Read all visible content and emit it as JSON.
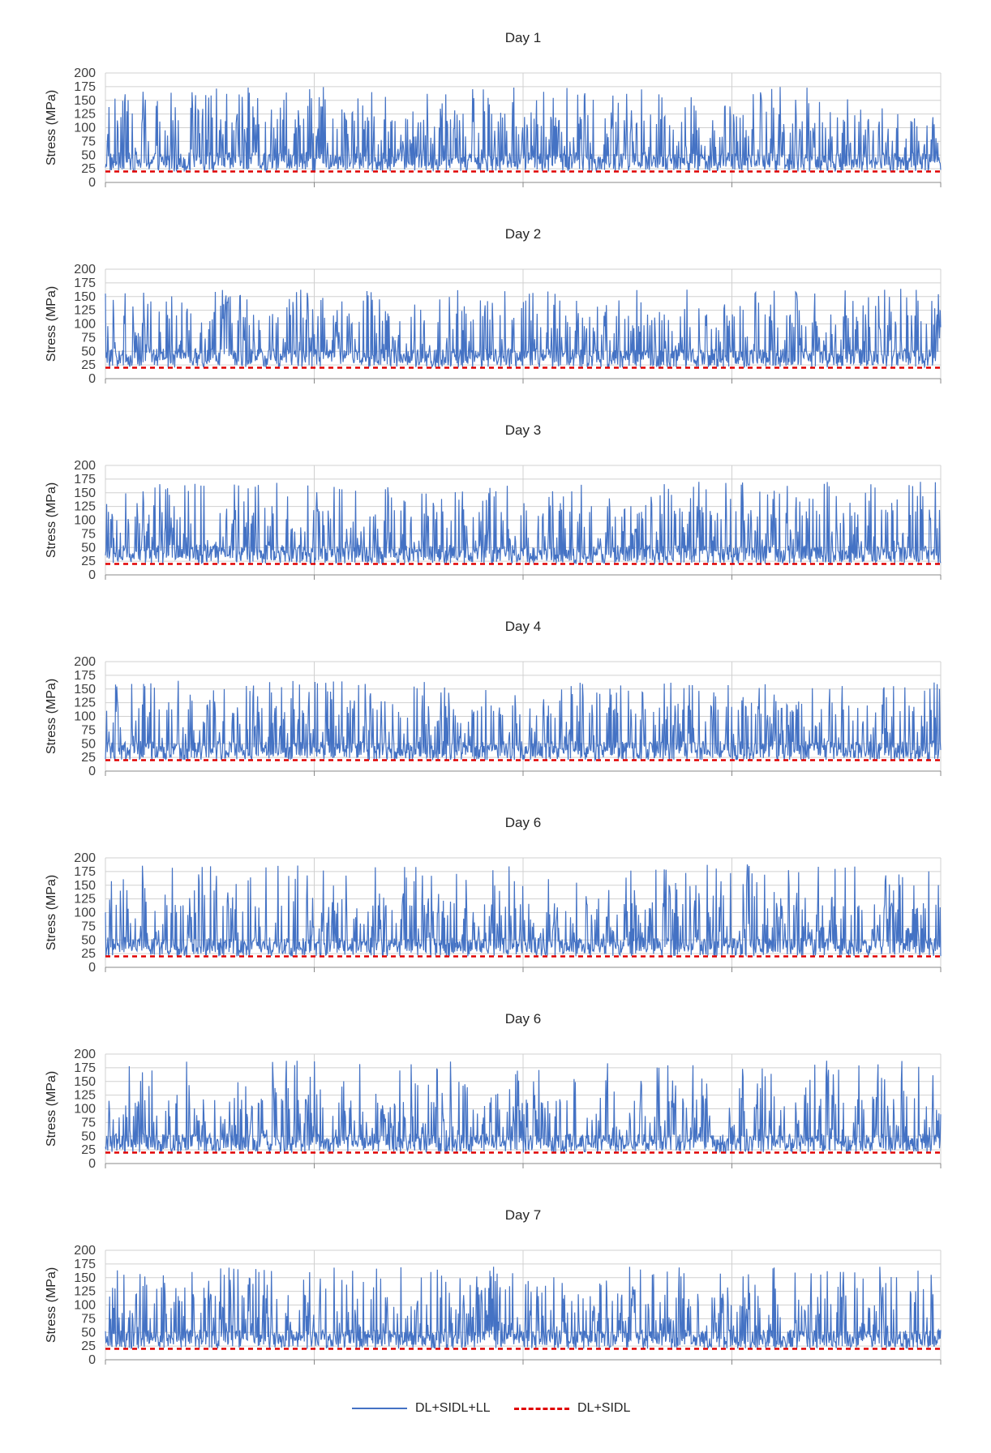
{
  "chart_data": [
    {
      "type": "line",
      "title": "Day 1",
      "ylabel": "Stress (MPa)",
      "ylim": [
        0,
        200
      ],
      "yticks": [
        "0",
        "25",
        "50",
        "75",
        "100",
        "125",
        "150",
        "175",
        "200"
      ],
      "series": [
        {
          "name": "DL+SIDL+LL",
          "baseline": 20,
          "range": [
            15,
            175
          ],
          "color": "#4472C4"
        },
        {
          "name": "DL+SIDL",
          "value": 20,
          "color": "#E00000"
        }
      ],
      "x_divisions": 4,
      "grid": true
    },
    {
      "type": "line",
      "title": "Day 2",
      "ylabel": "Stress (MPa)",
      "ylim": [
        0,
        200
      ],
      "yticks": [
        "0",
        "25",
        "50",
        "75",
        "100",
        "125",
        "150",
        "175",
        "200"
      ],
      "series": [
        {
          "name": "DL+SIDL+LL",
          "baseline": 20,
          "range": [
            15,
            165
          ],
          "color": "#4472C4"
        },
        {
          "name": "DL+SIDL",
          "value": 20,
          "color": "#E00000"
        }
      ],
      "x_divisions": 4,
      "grid": true
    },
    {
      "type": "line",
      "title": "Day 3",
      "ylabel": "Stress (MPa)",
      "ylim": [
        0,
        200
      ],
      "yticks": [
        "0",
        "25",
        "50",
        "75",
        "100",
        "125",
        "150",
        "175",
        "200"
      ],
      "series": [
        {
          "name": "DL+SIDL+LL",
          "baseline": 20,
          "range": [
            15,
            170
          ],
          "color": "#4472C4"
        },
        {
          "name": "DL+SIDL",
          "value": 20,
          "color": "#E00000"
        }
      ],
      "x_divisions": 4,
      "grid": true
    },
    {
      "type": "line",
      "title": "Day 4",
      "ylabel": "Stress (MPa)",
      "ylim": [
        0,
        200
      ],
      "yticks": [
        "0",
        "25",
        "50",
        "75",
        "100",
        "125",
        "150",
        "175",
        "200"
      ],
      "series": [
        {
          "name": "DL+SIDL+LL",
          "baseline": 20,
          "range": [
            15,
            165
          ],
          "color": "#4472C4"
        },
        {
          "name": "DL+SIDL",
          "value": 20,
          "color": "#E00000"
        }
      ],
      "x_divisions": 4,
      "grid": true
    },
    {
      "type": "line",
      "title": "Day 6",
      "ylabel": "Stress (MPa)",
      "ylim": [
        0,
        200
      ],
      "yticks": [
        "0",
        "25",
        "50",
        "75",
        "100",
        "125",
        "150",
        "175",
        "200"
      ],
      "series": [
        {
          "name": "DL+SIDL+LL",
          "baseline": 20,
          "range": [
            15,
            188
          ],
          "color": "#4472C4"
        },
        {
          "name": "DL+SIDL",
          "value": 20,
          "color": "#E00000"
        }
      ],
      "x_divisions": 4,
      "grid": true
    },
    {
      "type": "line",
      "title": "Day 6",
      "ylabel": "Stress (MPa)",
      "ylim": [
        0,
        200
      ],
      "yticks": [
        "0",
        "25",
        "50",
        "75",
        "100",
        "125",
        "150",
        "175",
        "200"
      ],
      "series": [
        {
          "name": "DL+SIDL+LL",
          "baseline": 20,
          "range": [
            15,
            188
          ],
          "color": "#4472C4"
        },
        {
          "name": "DL+SIDL",
          "value": 20,
          "color": "#E00000"
        }
      ],
      "x_divisions": 4,
      "grid": true
    },
    {
      "type": "line",
      "title": "Day 7",
      "ylabel": "Stress (MPa)",
      "ylim": [
        0,
        200
      ],
      "yticks": [
        "0",
        "25",
        "50",
        "75",
        "100",
        "125",
        "150",
        "175",
        "200"
      ],
      "series": [
        {
          "name": "DL+SIDL+LL",
          "baseline": 20,
          "range": [
            15,
            170
          ],
          "color": "#4472C4"
        },
        {
          "name": "DL+SIDL",
          "value": 20,
          "color": "#E00000"
        }
      ],
      "x_divisions": 4,
      "grid": true
    }
  ],
  "legend": {
    "placement": "bottom-center",
    "items": [
      {
        "label": "DL+SIDL+LL",
        "color": "#4472C4",
        "style": "solid"
      },
      {
        "label": "DL+SIDL",
        "color": "#E00000",
        "style": "dashed"
      }
    ]
  }
}
